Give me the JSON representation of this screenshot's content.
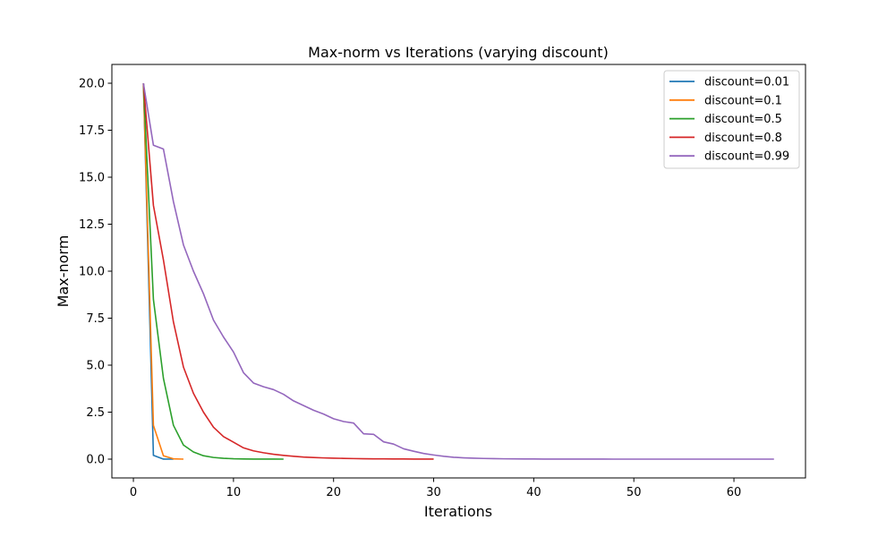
{
  "chart_data": {
    "type": "line",
    "title": "Max-norm vs Iterations (varying discount)",
    "xlabel": "Iterations",
    "ylabel": "Max-norm",
    "xlim": [
      -2.15,
      67.15
    ],
    "ylim": [
      -1.0,
      21.0
    ],
    "xticks": [
      0,
      10,
      20,
      30,
      40,
      50,
      60
    ],
    "xtick_labels": [
      "0",
      "10",
      "20",
      "30",
      "40",
      "50",
      "60"
    ],
    "yticks": [
      0.0,
      2.5,
      5.0,
      7.5,
      10.0,
      12.5,
      15.0,
      17.5,
      20.0
    ],
    "ytick_labels": [
      "0.0",
      "2.5",
      "5.0",
      "7.5",
      "10.0",
      "12.5",
      "15.0",
      "17.5",
      "20.0"
    ],
    "grid": false,
    "legend_position": "upper right",
    "series": [
      {
        "name": "discount=0.01",
        "color": "#1f77b4",
        "x": [
          1,
          2,
          3,
          4
        ],
        "y": [
          20.0,
          0.2,
          0.002,
          0.0
        ]
      },
      {
        "name": "discount=0.1",
        "color": "#ff7f0e",
        "x": [
          1,
          2,
          3,
          4,
          5
        ],
        "y": [
          20.0,
          1.8,
          0.18,
          0.016,
          0.0
        ]
      },
      {
        "name": "discount=0.5",
        "color": "#2ca02c",
        "x": [
          1,
          2,
          3,
          4,
          5,
          6,
          7,
          8,
          9,
          10,
          11,
          12,
          13,
          14,
          15
        ],
        "y": [
          20.0,
          8.5,
          4.3,
          1.8,
          0.75,
          0.38,
          0.18,
          0.09,
          0.045,
          0.022,
          0.011,
          0.005,
          0.003,
          0.001,
          0.0
        ]
      },
      {
        "name": "discount=0.8",
        "color": "#d62728",
        "x": [
          1,
          2,
          3,
          4,
          5,
          6,
          7,
          8,
          9,
          10,
          11,
          12,
          13,
          14,
          15,
          16,
          17,
          18,
          19,
          20,
          21,
          22,
          23,
          24,
          25,
          26,
          27,
          28,
          29,
          30
        ],
        "y": [
          20.0,
          13.5,
          10.6,
          7.3,
          4.9,
          3.5,
          2.5,
          1.7,
          1.2,
          0.9,
          0.6,
          0.44,
          0.34,
          0.26,
          0.2,
          0.15,
          0.11,
          0.085,
          0.065,
          0.05,
          0.04,
          0.03,
          0.022,
          0.017,
          0.013,
          0.01,
          0.007,
          0.005,
          0.004,
          0.003
        ]
      },
      {
        "name": "discount=0.99",
        "color": "#9467bd",
        "x": [
          1,
          2,
          3,
          4,
          5,
          6,
          7,
          8,
          9,
          10,
          11,
          12,
          13,
          14,
          15,
          16,
          17,
          18,
          19,
          20,
          21,
          22,
          23,
          24,
          25,
          26,
          27,
          28,
          29,
          30,
          31,
          32,
          33,
          34,
          35,
          36,
          37,
          38,
          39,
          40,
          41,
          42,
          43,
          44,
          45,
          46,
          47,
          48,
          49,
          50,
          51,
          52,
          53,
          54,
          55,
          56,
          57,
          58,
          59,
          60,
          61,
          62,
          63,
          64
        ],
        "y": [
          20.0,
          16.7,
          16.5,
          13.7,
          11.4,
          10.0,
          8.8,
          7.4,
          6.5,
          5.7,
          4.6,
          4.05,
          3.85,
          3.7,
          3.45,
          3.1,
          2.85,
          2.6,
          2.4,
          2.15,
          2.0,
          1.92,
          1.35,
          1.32,
          0.92,
          0.8,
          0.55,
          0.42,
          0.3,
          0.22,
          0.15,
          0.1,
          0.07,
          0.05,
          0.035,
          0.025,
          0.018,
          0.013,
          0.01,
          0.007,
          0.005,
          0.004,
          0.003,
          0.002,
          0.0015,
          0.001,
          0.0008,
          0.0006,
          0.0005,
          0.0004,
          0.0003,
          0.0002,
          0.0002,
          0.0001,
          0.0001,
          0.0001,
          0.0,
          0.0,
          0.0,
          0.0,
          0.0,
          0.0,
          0.0,
          0.0
        ]
      }
    ]
  }
}
